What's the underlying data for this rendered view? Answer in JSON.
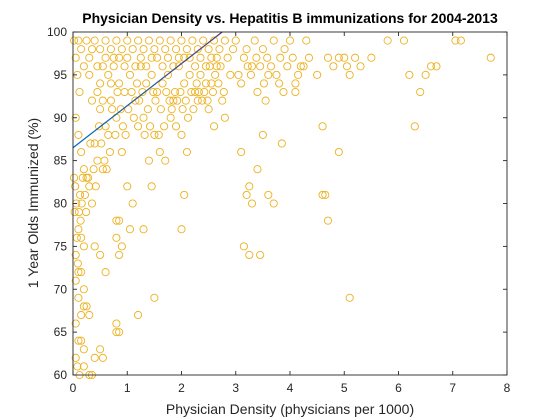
{
  "chart_data": {
    "type": "scatter",
    "title": "Physician Density vs. Hepatitis B immunizations for 2004-2013",
    "xlabel": "Physician Density (physicians per 1000)",
    "ylabel": "1 Year Olds Immunized (%)",
    "xlim": [
      0,
      8
    ],
    "ylim": [
      60,
      100
    ],
    "xticks": [
      0,
      1,
      2,
      3,
      4,
      5,
      6,
      7,
      8
    ],
    "yticks": [
      60,
      65,
      70,
      75,
      80,
      85,
      90,
      95,
      100
    ],
    "grid": false,
    "legend": "none",
    "marker_color": "#EDB120",
    "fit_line": {
      "x": [
        0,
        2.75
      ],
      "y": [
        86.5,
        100
      ],
      "colors": [
        "#0072BD",
        "#A2142F"
      ]
    },
    "series": [
      {
        "marker": "circle",
        "points": [
          [
            0.02,
            99
          ],
          [
            0.05,
            97
          ],
          [
            0.08,
            95
          ],
          [
            0.1,
            99
          ],
          [
            0.12,
            93
          ],
          [
            0.15,
            98
          ],
          [
            0.2,
            96
          ],
          [
            0.25,
            99
          ],
          [
            0.3,
            95
          ],
          [
            0.35,
            98
          ],
          [
            0.4,
            99
          ],
          [
            0.45,
            96
          ],
          [
            0.5,
            98
          ],
          [
            0.55,
            92
          ],
          [
            0.6,
            99
          ],
          [
            0.65,
            95
          ],
          [
            0.7,
            98
          ],
          [
            0.75,
            97
          ],
          [
            0.8,
            99
          ],
          [
            0.85,
            94
          ],
          [
            0.9,
            98
          ],
          [
            0.95,
            96
          ],
          [
            1.0,
            99
          ],
          [
            1.05,
            95
          ],
          [
            1.1,
            98
          ],
          [
            1.15,
            92
          ],
          [
            1.2,
            99
          ],
          [
            1.25,
            96
          ],
          [
            1.3,
            98
          ],
          [
            1.35,
            94
          ],
          [
            1.4,
            99
          ],
          [
            1.45,
            97
          ],
          [
            1.5,
            98
          ],
          [
            1.55,
            93
          ],
          [
            1.6,
            99
          ],
          [
            1.65,
            96
          ],
          [
            1.7,
            98
          ],
          [
            1.75,
            95
          ],
          [
            1.8,
            99
          ],
          [
            1.85,
            92
          ],
          [
            1.9,
            98
          ],
          [
            1.95,
            96
          ],
          [
            2.0,
            99
          ],
          [
            2.05,
            94
          ],
          [
            2.1,
            98
          ],
          [
            2.15,
            97
          ],
          [
            2.2,
            99
          ],
          [
            2.25,
            93
          ],
          [
            2.3,
            98
          ],
          [
            2.35,
            95
          ],
          [
            2.4,
            99
          ],
          [
            2.45,
            96
          ],
          [
            2.5,
            98
          ],
          [
            2.55,
            94
          ],
          [
            2.6,
            99
          ],
          [
            2.65,
            97
          ],
          [
            2.7,
            98
          ],
          [
            2.75,
            92
          ],
          [
            2.8,
            99
          ],
          [
            2.9,
            95
          ],
          [
            3.0,
            99
          ],
          [
            3.1,
            94
          ],
          [
            3.2,
            98
          ],
          [
            3.3,
            96
          ],
          [
            3.35,
            99
          ],
          [
            3.4,
            93
          ],
          [
            3.5,
            98
          ],
          [
            3.55,
            92
          ],
          [
            3.6,
            95
          ],
          [
            3.7,
            99
          ],
          [
            3.8,
            94
          ],
          [
            3.9,
            98
          ],
          [
            4.0,
            99
          ],
          [
            4.1,
            94
          ],
          [
            4.2,
            96
          ],
          [
            4.3,
            99
          ],
          [
            4.5,
            95
          ],
          [
            4.6,
            89
          ],
          [
            4.7,
            97
          ],
          [
            4.8,
            96
          ],
          [
            4.9,
            97
          ],
          [
            5.0,
            97
          ],
          [
            5.05,
            96
          ],
          [
            5.1,
            95
          ],
          [
            5.2,
            97
          ],
          [
            5.3,
            96
          ],
          [
            5.5,
            97
          ],
          [
            5.8,
            99
          ],
          [
            6.1,
            99
          ],
          [
            6.2,
            95
          ],
          [
            6.3,
            89
          ],
          [
            6.4,
            93
          ],
          [
            6.5,
            95
          ],
          [
            6.6,
            96
          ],
          [
            6.7,
            96
          ],
          [
            7.05,
            99
          ],
          [
            7.15,
            99
          ],
          [
            7.7,
            97
          ],
          [
            0.05,
            90
          ],
          [
            0.1,
            88
          ],
          [
            0.15,
            86
          ],
          [
            0.2,
            84
          ],
          [
            0.25,
            83
          ],
          [
            0.3,
            82
          ],
          [
            0.35,
            80
          ],
          [
            0.4,
            87
          ],
          [
            0.45,
            85
          ],
          [
            0.5,
            91
          ],
          [
            0.55,
            84
          ],
          [
            0.6,
            89
          ],
          [
            0.65,
            88
          ],
          [
            0.7,
            92
          ],
          [
            0.8,
            90
          ],
          [
            0.9,
            86
          ],
          [
            1.0,
            82
          ],
          [
            1.1,
            80
          ],
          [
            1.2,
            89
          ],
          [
            1.3,
            90
          ],
          [
            1.4,
            85
          ],
          [
            1.45,
            82
          ],
          [
            1.5,
            88
          ],
          [
            1.6,
            86
          ],
          [
            1.7,
            85
          ],
          [
            1.8,
            90
          ],
          [
            1.9,
            89
          ],
          [
            2.0,
            88
          ],
          [
            2.05,
            81
          ],
          [
            2.1,
            86
          ],
          [
            2.3,
            92
          ],
          [
            2.5,
            91
          ],
          [
            2.6,
            89
          ],
          [
            2.8,
            90
          ],
          [
            3.1,
            86
          ],
          [
            3.2,
            81
          ],
          [
            3.25,
            82
          ],
          [
            3.3,
            80
          ],
          [
            3.4,
            84
          ],
          [
            3.5,
            88
          ],
          [
            3.6,
            81
          ],
          [
            3.7,
            80
          ],
          [
            3.85,
            87
          ],
          [
            4.1,
            93
          ],
          [
            4.6,
            81
          ],
          [
            4.65,
            81
          ],
          [
            4.7,
            78
          ],
          [
            4.9,
            86
          ],
          [
            5.1,
            69
          ],
          [
            3.45,
            74
          ],
          [
            3.15,
            75
          ],
          [
            3.25,
            74
          ],
          [
            2.0,
            77
          ],
          [
            1.3,
            77
          ],
          [
            0.8,
            78
          ],
          [
            0.85,
            78
          ],
          [
            0.1,
            77
          ],
          [
            0.15,
            76
          ],
          [
            0.2,
            75
          ],
          [
            0.05,
            74
          ],
          [
            0.1,
            72
          ],
          [
            0.15,
            72
          ],
          [
            0.05,
            71
          ],
          [
            0.2,
            70
          ],
          [
            0.1,
            69
          ],
          [
            0.2,
            68
          ],
          [
            0.25,
            68
          ],
          [
            0.3,
            67
          ],
          [
            0.15,
            67
          ],
          [
            0.05,
            66
          ],
          [
            0.4,
            75
          ],
          [
            0.5,
            74
          ],
          [
            0.6,
            72
          ],
          [
            0.8,
            76
          ],
          [
            0.9,
            75
          ],
          [
            0.85,
            74
          ],
          [
            1.05,
            77
          ],
          [
            0.8,
            66
          ],
          [
            0.8,
            65
          ],
          [
            0.85,
            65
          ],
          [
            1.2,
            67
          ],
          [
            1.5,
            69
          ],
          [
            0.1,
            64
          ],
          [
            0.15,
            64
          ],
          [
            0.2,
            63
          ],
          [
            0.05,
            62
          ],
          [
            0.2,
            61
          ],
          [
            0.3,
            60
          ],
          [
            0.35,
            60
          ],
          [
            0.4,
            62
          ],
          [
            0.55,
            62
          ],
          [
            0.5,
            63
          ],
          [
            0.08,
            61
          ],
          [
            0.12,
            60
          ],
          [
            0.02,
            83
          ],
          [
            0.03,
            79
          ],
          [
            0.04,
            82
          ],
          [
            0.06,
            80
          ],
          [
            0.07,
            76
          ],
          [
            0.09,
            73
          ],
          [
            0.11,
            79
          ],
          [
            0.13,
            81
          ],
          [
            0.14,
            78
          ],
          [
            0.16,
            80
          ],
          [
            0.18,
            83
          ],
          [
            0.22,
            81
          ],
          [
            0.24,
            79
          ],
          [
            0.28,
            83
          ],
          [
            0.32,
            87
          ],
          [
            0.38,
            84
          ],
          [
            0.42,
            82
          ],
          [
            0.48,
            89
          ],
          [
            0.52,
            87
          ],
          [
            0.58,
            85
          ],
          [
            0.62,
            84
          ],
          [
            0.68,
            86
          ],
          [
            0.72,
            91
          ],
          [
            0.78,
            88
          ],
          [
            0.82,
            93
          ],
          [
            0.88,
            91
          ],
          [
            0.92,
            89
          ],
          [
            0.97,
            88
          ],
          [
            1.02,
            91
          ],
          [
            1.08,
            93
          ],
          [
            1.12,
            90
          ],
          [
            1.18,
            94
          ],
          [
            1.22,
            92
          ],
          [
            1.28,
            93
          ],
          [
            1.32,
            88
          ],
          [
            1.38,
            91
          ],
          [
            1.42,
            89
          ],
          [
            1.48,
            93
          ],
          [
            1.52,
            92
          ],
          [
            1.58,
            88
          ],
          [
            1.62,
            91
          ],
          [
            1.68,
            89
          ],
          [
            1.72,
            93
          ],
          [
            1.78,
            92
          ],
          [
            1.82,
            91
          ],
          [
            1.88,
            93
          ],
          [
            1.92,
            92
          ],
          [
            1.98,
            93
          ],
          [
            2.02,
            91
          ],
          [
            2.08,
            92
          ],
          [
            2.12,
            90
          ],
          [
            2.18,
            93
          ],
          [
            2.22,
            91
          ],
          [
            2.28,
            94
          ],
          [
            2.32,
            93
          ],
          [
            2.38,
            92
          ],
          [
            2.42,
            93
          ],
          [
            2.48,
            92
          ],
          [
            2.52,
            96
          ],
          [
            2.58,
            93
          ],
          [
            2.62,
            95
          ],
          [
            2.68,
            94
          ],
          [
            2.72,
            96
          ],
          [
            2.78,
            93
          ],
          [
            2.85,
            97
          ],
          [
            2.95,
            98
          ],
          [
            3.05,
            95
          ],
          [
            3.15,
            97
          ],
          [
            3.22,
            96
          ],
          [
            3.28,
            95
          ],
          [
            3.38,
            97
          ],
          [
            3.45,
            96
          ],
          [
            3.52,
            94
          ],
          [
            3.58,
            97
          ],
          [
            3.65,
            96
          ],
          [
            3.75,
            95
          ],
          [
            3.82,
            97
          ],
          [
            3.88,
            93
          ],
          [
            3.95,
            96
          ],
          [
            4.05,
            97
          ],
          [
            4.15,
            95
          ],
          [
            4.25,
            96
          ],
          [
            4.35,
            97
          ],
          [
            0.3,
            97
          ],
          [
            0.35,
            92
          ],
          [
            0.45,
            93
          ],
          [
            0.5,
            94
          ],
          [
            0.55,
            96
          ],
          [
            0.6,
            97
          ],
          [
            0.7,
            94
          ],
          [
            0.75,
            96
          ],
          [
            0.85,
            97
          ],
          [
            0.95,
            93
          ],
          [
            1.0,
            97
          ],
          [
            1.15,
            96
          ],
          [
            1.25,
            97
          ],
          [
            1.35,
            96
          ],
          [
            1.45,
            95
          ],
          [
            1.55,
            97
          ],
          [
            1.65,
            94
          ],
          [
            1.75,
            97
          ],
          [
            1.85,
            96
          ],
          [
            1.95,
            97
          ],
          [
            2.05,
            97
          ],
          [
            2.15,
            95
          ],
          [
            2.25,
            96
          ],
          [
            2.35,
            97
          ],
          [
            2.45,
            94
          ],
          [
            2.55,
            97
          ],
          [
            2.65,
            96
          ]
        ]
      }
    ]
  }
}
